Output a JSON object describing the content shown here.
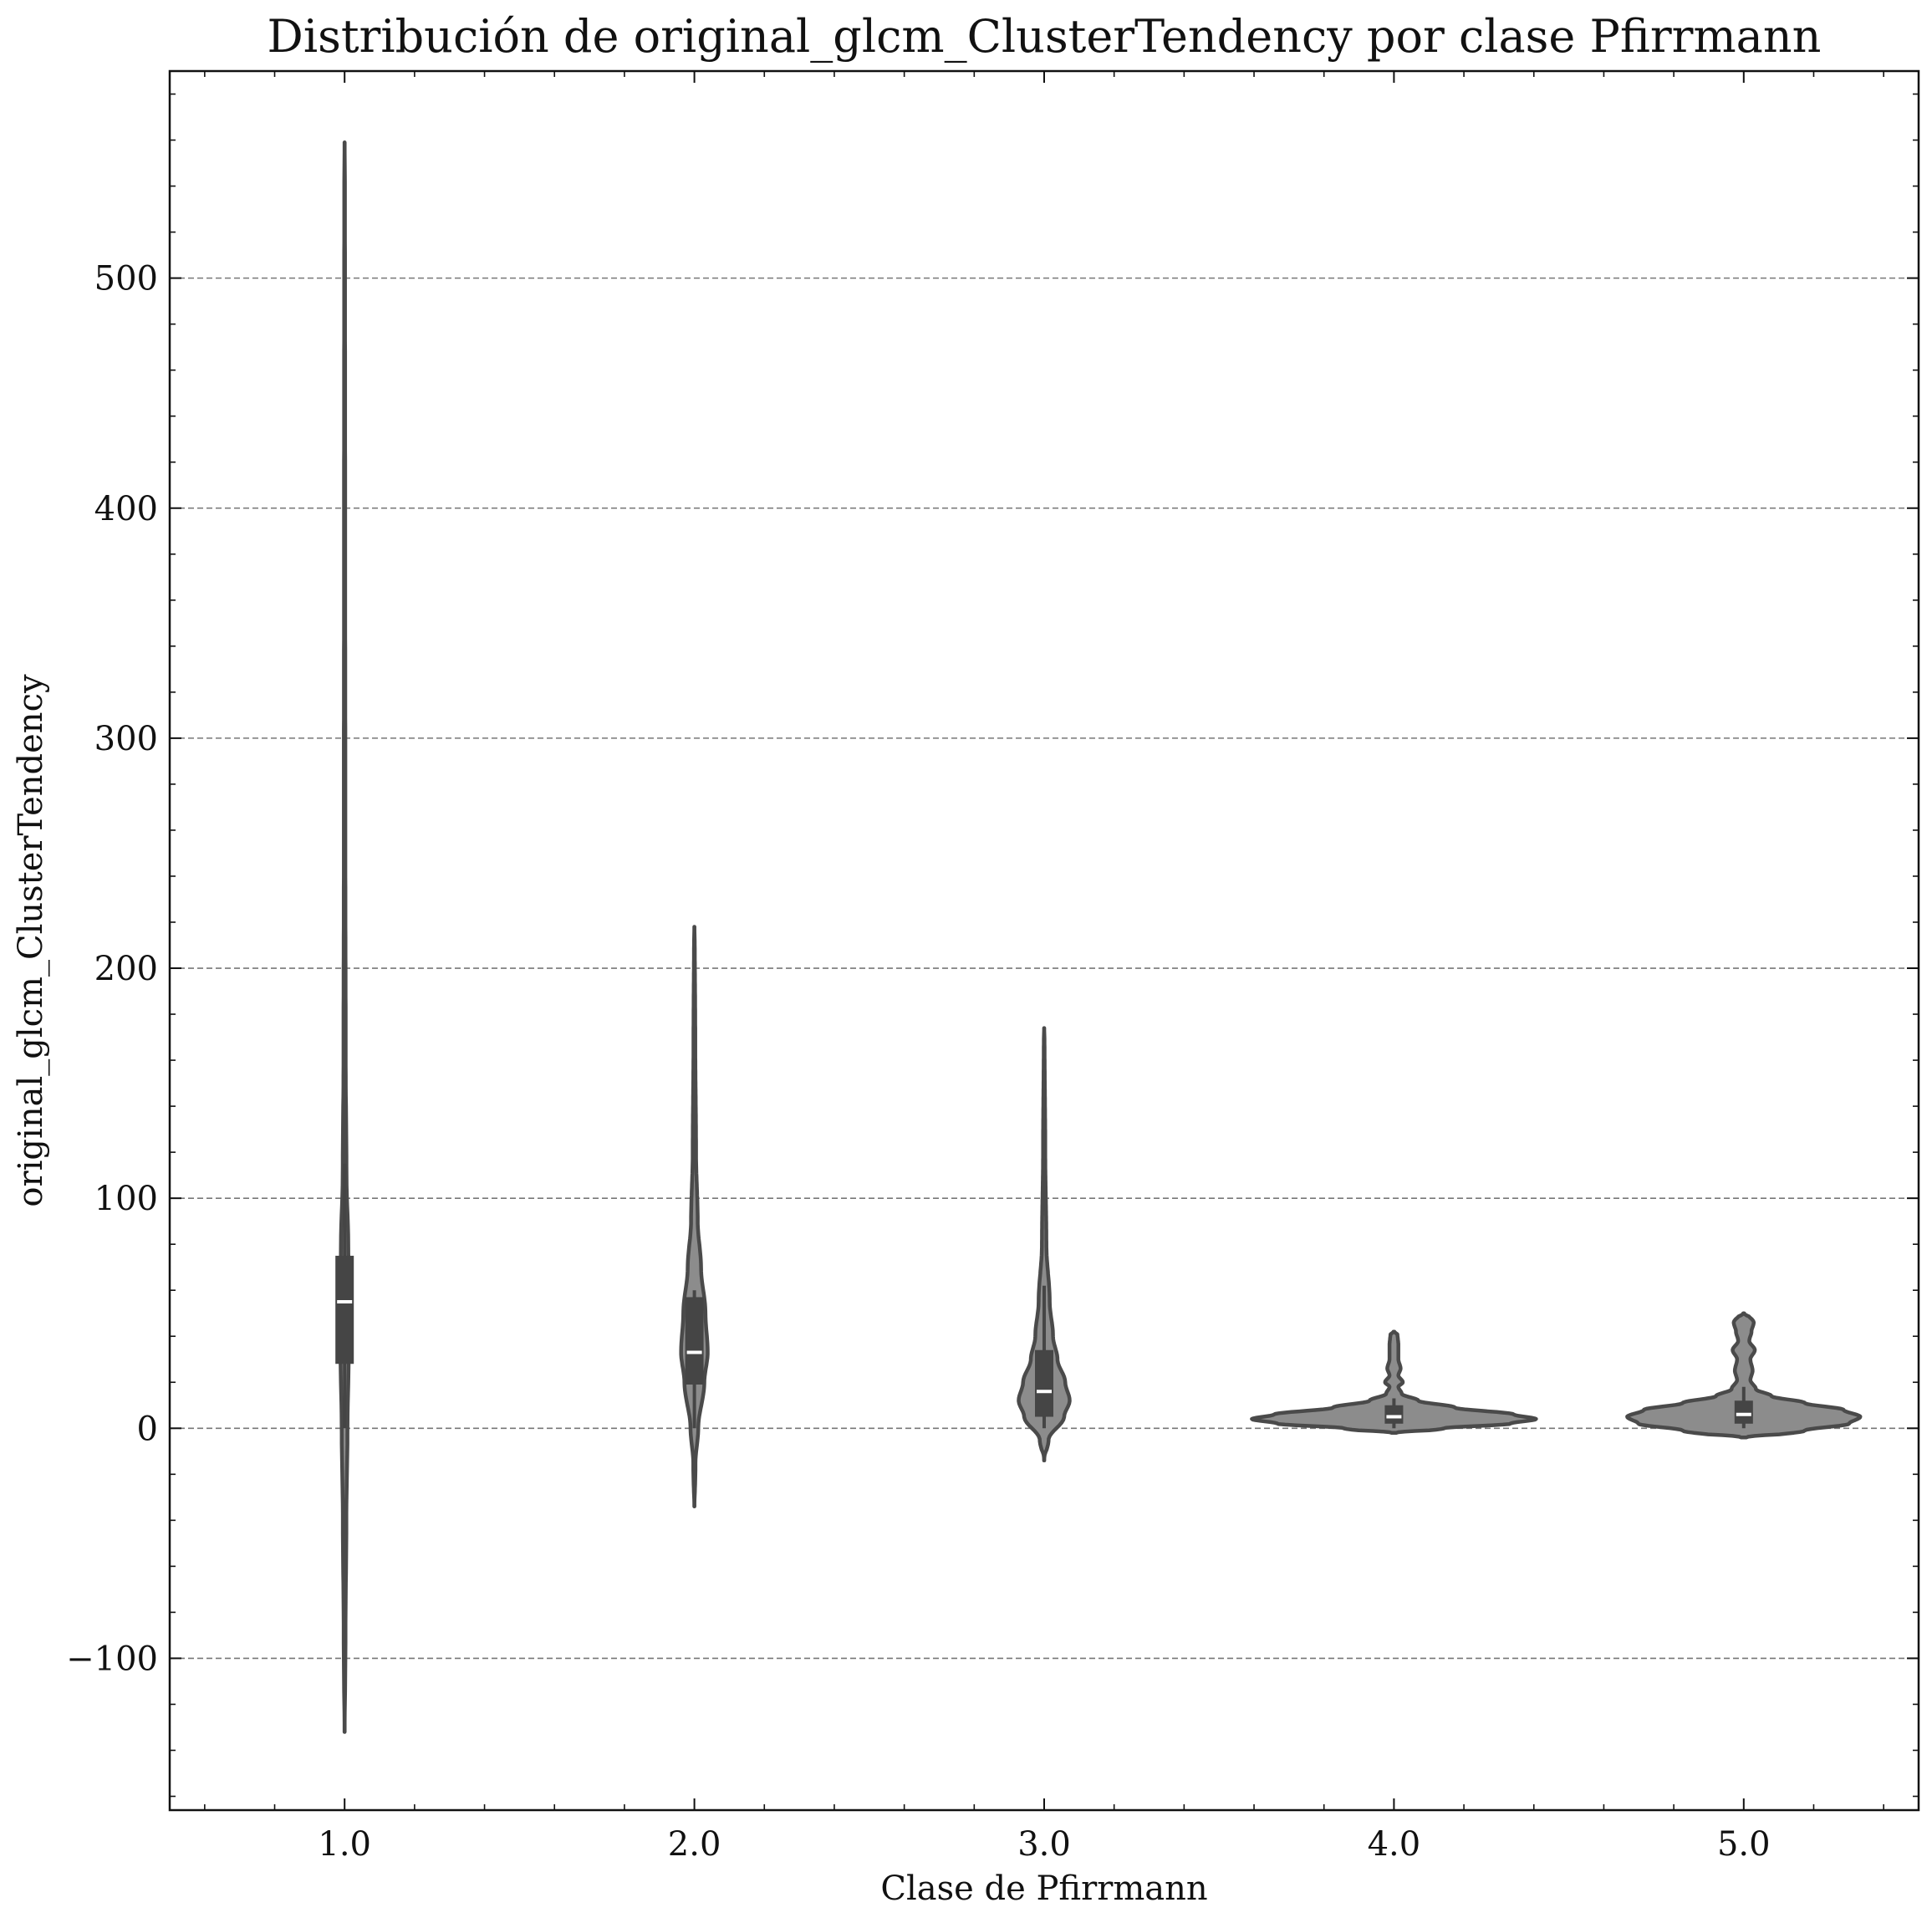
{
  "chart_data": {
    "type": "violin",
    "title": "Distribución de original_glcm_ClusterTendency por clase Pfirrmann",
    "xlabel": "Clase de Pfirrmann",
    "ylabel": "original_glcm_ClusterTendency",
    "categories": [
      "1.0",
      "2.0",
      "3.0",
      "4.0",
      "5.0"
    ],
    "y_ticks": [
      -100,
      0,
      100,
      200,
      300,
      400,
      500
    ],
    "y_tick_labels": [
      "−100",
      "0",
      "100",
      "200",
      "300",
      "400",
      "500"
    ],
    "ylim": [
      -166,
      590
    ],
    "grid": "horizontal dashed",
    "colors": {
      "violin_fill": "#8c8c8c",
      "violin_edge": "#4a4a4a",
      "box": "#454545",
      "median": "#ffffff",
      "grid": "#777777"
    },
    "series": [
      {
        "category": "1.0",
        "median": 55,
        "q1": 28,
        "q3": 75,
        "whisker_low": 0,
        "whisker_high": 115,
        "kde_min": -132,
        "kde_max": 559,
        "profile": [
          [
            -132,
            0.3
          ],
          [
            -90,
            0.8
          ],
          [
            -40,
            1.6
          ],
          [
            0,
            2.6
          ],
          [
            30,
            3.6
          ],
          [
            55,
            4.5
          ],
          [
            80,
            3.3
          ],
          [
            110,
            1.7
          ],
          [
            160,
            1.0
          ],
          [
            250,
            0.7
          ],
          [
            400,
            0.5
          ],
          [
            559,
            0.3
          ]
        ]
      },
      {
        "category": "2.0",
        "median": 33,
        "q1": 19,
        "q3": 57,
        "whisker_low": 0,
        "whisker_high": 60,
        "kde_min": -34,
        "kde_max": 218,
        "profile": [
          [
            -34,
            0.3
          ],
          [
            -15,
            1.0
          ],
          [
            0,
            3.5
          ],
          [
            20,
            9.0
          ],
          [
            33,
            12.0
          ],
          [
            50,
            10.0
          ],
          [
            70,
            6.0
          ],
          [
            90,
            3.0
          ],
          [
            120,
            1.5
          ],
          [
            170,
            0.8
          ],
          [
            218,
            0.3
          ]
        ]
      },
      {
        "category": "3.0",
        "median": 16,
        "q1": 5,
        "q3": 34,
        "whisker_low": 0,
        "whisker_high": 62,
        "kde_min": -14,
        "kde_max": 174,
        "profile": [
          [
            -14,
            0.3
          ],
          [
            -5,
            4.0
          ],
          [
            5,
            18.0
          ],
          [
            12,
            23.0
          ],
          [
            20,
            19.0
          ],
          [
            30,
            12.0
          ],
          [
            40,
            8.0
          ],
          [
            55,
            5.0
          ],
          [
            80,
            2.0
          ],
          [
            120,
            1.0
          ],
          [
            174,
            0.3
          ]
        ]
      },
      {
        "category": "4.0",
        "median": 5,
        "q1": 2,
        "q3": 10,
        "whisker_low": 0,
        "whisker_high": 13,
        "kde_min": -2,
        "kde_max": 42,
        "profile": [
          [
            -2,
            14
          ],
          [
            0,
            45
          ],
          [
            2,
            105
          ],
          [
            4,
            128
          ],
          [
            6,
            108
          ],
          [
            9,
            55
          ],
          [
            12,
            22
          ],
          [
            15,
            7
          ],
          [
            18,
            4
          ],
          [
            20,
            8
          ],
          [
            23,
            4
          ],
          [
            26,
            6
          ],
          [
            30,
            4
          ],
          [
            36,
            4
          ],
          [
            42,
            3
          ]
        ]
      },
      {
        "category": "5.0",
        "median": 6,
        "q1": 2,
        "q3": 12,
        "whisker_low": 0,
        "whisker_high": 18,
        "kde_min": -4,
        "kde_max": 50,
        "profile": [
          [
            -4,
            15
          ],
          [
            -1,
            55
          ],
          [
            2,
            95
          ],
          [
            5,
            105
          ],
          [
            8,
            90
          ],
          [
            11,
            55
          ],
          [
            14,
            25
          ],
          [
            17,
            11
          ],
          [
            21,
            6
          ],
          [
            25,
            8
          ],
          [
            30,
            6
          ],
          [
            34,
            10
          ],
          [
            38,
            5
          ],
          [
            42,
            7
          ],
          [
            46,
            9
          ],
          [
            50,
            3
          ]
        ]
      }
    ]
  }
}
